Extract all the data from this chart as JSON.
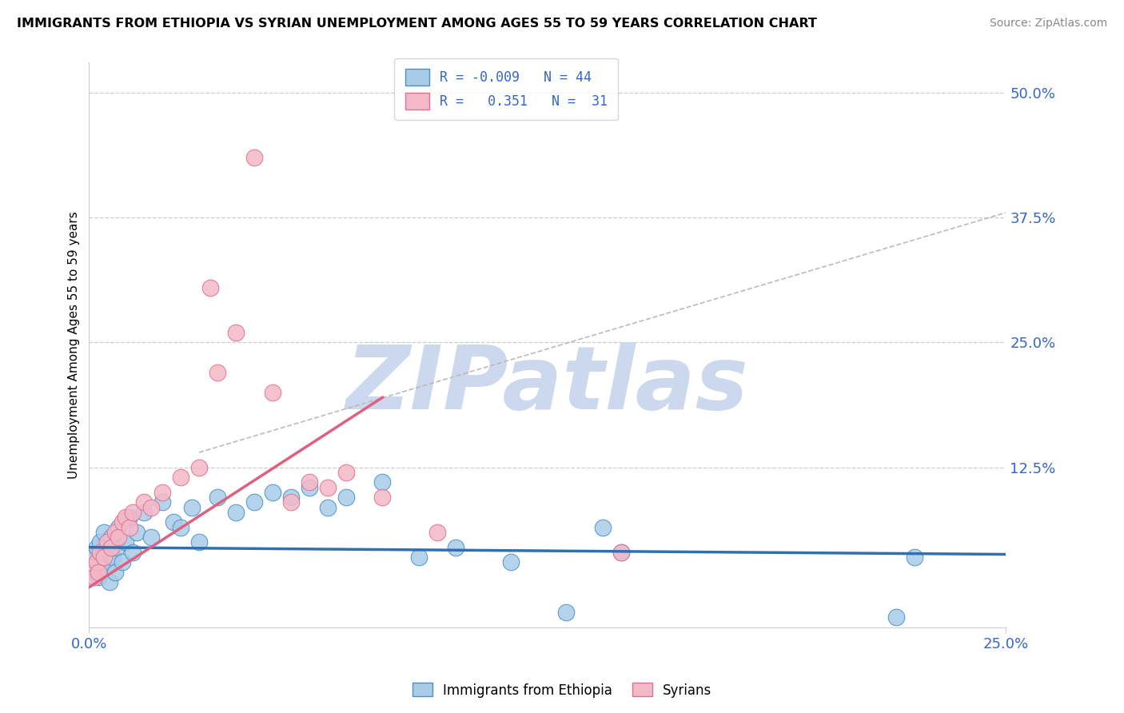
{
  "title": "IMMIGRANTS FROM ETHIOPIA VS SYRIAN UNEMPLOYMENT AMONG AGES 55 TO 59 YEARS CORRELATION CHART",
  "source": "Source: ZipAtlas.com",
  "ylabel": "Unemployment Among Ages 55 to 59 years",
  "xlim": [
    0.0,
    25.0
  ],
  "ylim": [
    -3.5,
    53.0
  ],
  "ytick_vals": [
    12.5,
    25.0,
    37.5,
    50.0
  ],
  "ytick_labels": [
    "12.5%",
    "25.0%",
    "37.5%",
    "50.0%"
  ],
  "xtick_vals": [
    0.0,
    25.0
  ],
  "xtick_labels": [
    "0.0%",
    "25.0%"
  ],
  "legend_line1": "R = -0.009   N = 44",
  "legend_line2": "R =   0.351   N =  31",
  "color_blue_fill": "#a8cce8",
  "color_blue_edge": "#4a90c4",
  "color_blue_line": "#3070b0",
  "color_pink_fill": "#f4b8c8",
  "color_pink_edge": "#e07090",
  "color_pink_line": "#e06080",
  "color_gray_dash": "#bbbbbb",
  "watermark": "ZIPatlas",
  "watermark_color": "#ccd8ee",
  "blue_x": [
    0.1,
    0.15,
    0.2,
    0.25,
    0.3,
    0.35,
    0.4,
    0.45,
    0.5,
    0.55,
    0.6,
    0.65,
    0.7,
    0.75,
    0.8,
    0.9,
    1.0,
    1.1,
    1.2,
    1.3,
    1.5,
    1.7,
    2.0,
    2.3,
    2.5,
    2.8,
    3.0,
    3.5,
    4.0,
    4.5,
    5.0,
    5.5,
    6.0,
    6.5,
    7.0,
    8.0,
    9.0,
    10.0,
    11.5,
    13.0,
    14.0,
    14.5,
    22.0,
    22.5
  ],
  "blue_y": [
    3.5,
    2.0,
    4.5,
    1.5,
    5.0,
    3.0,
    6.0,
    2.5,
    4.0,
    1.0,
    5.5,
    3.5,
    2.0,
    4.5,
    6.5,
    3.0,
    5.0,
    7.5,
    4.0,
    6.0,
    8.0,
    5.5,
    9.0,
    7.0,
    6.5,
    8.5,
    5.0,
    9.5,
    8.0,
    9.0,
    10.0,
    9.5,
    10.5,
    8.5,
    9.5,
    11.0,
    3.5,
    4.5,
    3.0,
    -2.0,
    6.5,
    4.0,
    -2.5,
    3.5
  ],
  "pink_x": [
    0.1,
    0.15,
    0.2,
    0.25,
    0.3,
    0.4,
    0.5,
    0.6,
    0.7,
    0.8,
    0.9,
    1.0,
    1.1,
    1.2,
    1.5,
    1.7,
    2.0,
    2.5,
    3.0,
    3.3,
    3.5,
    4.0,
    4.5,
    5.0,
    5.5,
    6.0,
    6.5,
    7.0,
    8.0,
    9.5,
    14.5
  ],
  "pink_y": [
    2.5,
    1.5,
    3.0,
    2.0,
    4.0,
    3.5,
    5.0,
    4.5,
    6.0,
    5.5,
    7.0,
    7.5,
    6.5,
    8.0,
    9.0,
    8.5,
    10.0,
    11.5,
    12.5,
    30.5,
    22.0,
    26.0,
    43.5,
    20.0,
    9.0,
    11.0,
    10.5,
    12.0,
    9.5,
    6.0,
    4.0
  ],
  "blue_line_y0": 4.5,
  "blue_line_y1": 3.8,
  "pink_line_x0": 0.0,
  "pink_line_y0": 0.5,
  "pink_line_x1": 8.0,
  "pink_line_y1": 19.5,
  "gray_dash_x0": 3.0,
  "gray_dash_y0": 14.0,
  "gray_dash_x1": 25.0,
  "gray_dash_y1": 38.0
}
